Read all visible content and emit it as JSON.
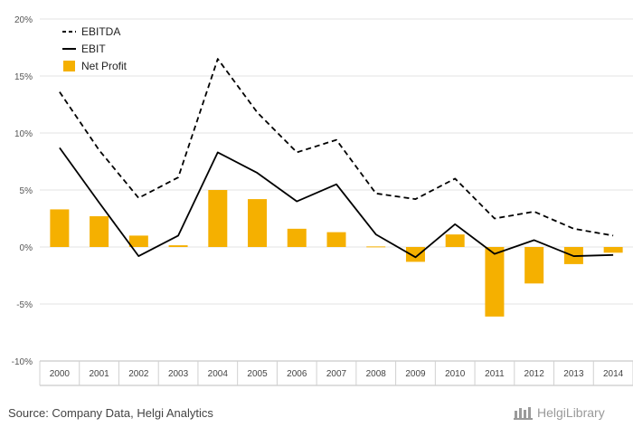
{
  "chart_data": {
    "type": "bar",
    "categories": [
      "2000",
      "2001",
      "2002",
      "2003",
      "2004",
      "2005",
      "2006",
      "2007",
      "2008",
      "2009",
      "2010",
      "2011",
      "2012",
      "2013",
      "2014"
    ],
    "series": [
      {
        "name": "EBITDA",
        "kind": "line",
        "style": "dashed",
        "color": "#000000",
        "values": [
          13.6,
          8.5,
          4.3,
          6.1,
          16.5,
          11.8,
          8.3,
          9.4,
          4.7,
          4.2,
          6.0,
          2.5,
          3.1,
          1.6,
          1.0
        ]
      },
      {
        "name": "EBIT",
        "kind": "line",
        "style": "solid",
        "color": "#000000",
        "values": [
          8.7,
          3.9,
          -0.8,
          1.0,
          8.3,
          6.5,
          4.0,
          5.5,
          1.1,
          -0.9,
          2.0,
          -0.6,
          0.6,
          -0.8,
          -0.7
        ]
      },
      {
        "name": "Net Profit",
        "kind": "bar",
        "color": "#f5b000",
        "values": [
          3.3,
          2.7,
          1.0,
          0.15,
          5.0,
          4.2,
          1.6,
          1.3,
          0.05,
          -1.3,
          1.1,
          -6.1,
          -3.2,
          -1.5,
          -0.5
        ]
      }
    ],
    "y_ticks": [
      "20%",
      "15%",
      "10%",
      "5%",
      "0%",
      "-5%",
      "-10%"
    ],
    "ylim": [
      -10,
      20
    ],
    "grid": true,
    "legend_position": "top-left"
  },
  "footer": {
    "source": "Source: Company Data, Helgi Analytics",
    "logo_text": "HelgiLibrary"
  }
}
